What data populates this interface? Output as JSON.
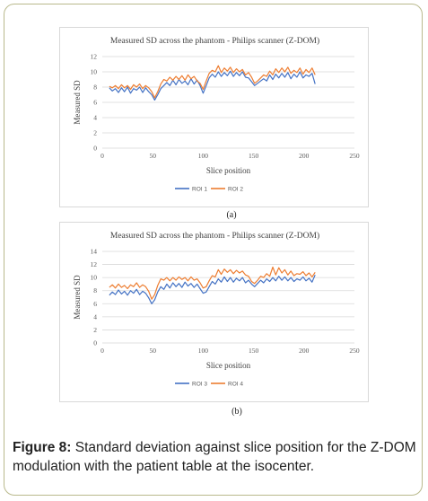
{
  "caption": {
    "label": "Figure 8:",
    "text": " Standard deviation against slice position for the Z-DOM modulation with the patient table at the isocenter."
  },
  "chart_data": [
    {
      "type": "line",
      "panel_label": "(a)",
      "title": "Measured SD across the phantom - Philips scanner (Z-DOM)",
      "xlabel": "Slice position",
      "ylabel": "Measured SD",
      "xlim": [
        0,
        250
      ],
      "ylim": [
        0,
        12
      ],
      "xticks": [
        0,
        50,
        100,
        150,
        200,
        250
      ],
      "yticks": [
        0,
        2,
        4,
        6,
        8,
        10,
        12
      ],
      "grid": true,
      "legend_position": "bottom",
      "series": [
        {
          "name": "ROI 1",
          "color": "#4472c4",
          "x": [
            7,
            10,
            13,
            16,
            19,
            22,
            25,
            28,
            31,
            34,
            37,
            40,
            43,
            46,
            49,
            52,
            55,
            58,
            61,
            64,
            67,
            70,
            73,
            76,
            79,
            82,
            85,
            88,
            91,
            94,
            97,
            100,
            103,
            106,
            109,
            112,
            115,
            118,
            121,
            124,
            127,
            130,
            133,
            136,
            139,
            142,
            145,
            148,
            151,
            154,
            157,
            160,
            163,
            166,
            169,
            172,
            175,
            178,
            181,
            184,
            187,
            190,
            193,
            196,
            199,
            202,
            205,
            208,
            211
          ],
          "values": [
            7.9,
            7.5,
            7.8,
            7.3,
            7.9,
            7.4,
            8.0,
            7.2,
            7.8,
            7.6,
            8.0,
            7.3,
            7.9,
            7.4,
            7.0,
            6.3,
            7.0,
            7.8,
            8.2,
            8.6,
            8.2,
            8.9,
            8.3,
            9.0,
            8.5,
            8.8,
            8.3,
            9.1,
            8.4,
            8.9,
            8.2,
            7.2,
            8.2,
            9.2,
            9.7,
            9.3,
            10.0,
            9.4,
            9.9,
            9.5,
            10.1,
            9.4,
            9.9,
            9.5,
            10.0,
            9.3,
            9.2,
            8.7,
            8.2,
            8.5,
            8.8,
            9.1,
            8.8,
            9.6,
            9.0,
            9.7,
            9.2,
            9.8,
            9.3,
            9.9,
            9.1,
            9.7,
            9.3,
            10.0,
            9.2,
            9.6,
            9.4,
            9.8,
            8.4
          ]
        },
        {
          "name": "ROI 2",
          "color": "#ed7d31",
          "x": [
            7,
            10,
            13,
            16,
            19,
            22,
            25,
            28,
            31,
            34,
            37,
            40,
            43,
            46,
            49,
            52,
            55,
            58,
            61,
            64,
            67,
            70,
            73,
            76,
            79,
            82,
            85,
            88,
            91,
            94,
            97,
            100,
            103,
            106,
            109,
            112,
            115,
            118,
            121,
            124,
            127,
            130,
            133,
            136,
            139,
            142,
            145,
            148,
            151,
            154,
            157,
            160,
            163,
            166,
            169,
            172,
            175,
            178,
            181,
            184,
            187,
            190,
            193,
            196,
            199,
            202,
            205,
            208,
            211
          ],
          "values": [
            8.1,
            7.9,
            8.2,
            7.8,
            8.3,
            7.9,
            8.2,
            7.7,
            8.3,
            8.0,
            8.4,
            7.8,
            8.2,
            7.9,
            7.4,
            6.6,
            7.4,
            8.4,
            9.0,
            8.8,
            9.3,
            8.9,
            9.4,
            9.0,
            9.5,
            8.9,
            9.6,
            9.1,
            9.4,
            8.8,
            8.5,
            7.7,
            8.8,
            9.8,
            10.2,
            10.0,
            10.8,
            9.9,
            10.5,
            10.1,
            10.6,
            9.9,
            10.4,
            10.0,
            10.3,
            9.6,
            9.9,
            9.3,
            8.5,
            8.8,
            9.2,
            9.6,
            9.4,
            10.1,
            9.6,
            10.4,
            9.9,
            10.5,
            10.0,
            10.6,
            9.8,
            10.2,
            9.9,
            10.5,
            9.7,
            10.3,
            9.9,
            10.5,
            9.6
          ]
        }
      ]
    },
    {
      "type": "line",
      "panel_label": "(b)",
      "title": "Measured SD across the phantom - Philips scanner (Z-DOM)",
      "xlabel": "Slice position",
      "ylabel": "Measured SD",
      "xlim": [
        0,
        250
      ],
      "ylim": [
        0,
        14
      ],
      "xticks": [
        0,
        50,
        100,
        150,
        200,
        250
      ],
      "yticks": [
        0,
        2,
        4,
        6,
        8,
        10,
        12,
        14
      ],
      "grid": true,
      "legend_position": "bottom",
      "series": [
        {
          "name": "ROI 3",
          "color": "#4472c4",
          "x": [
            7,
            10,
            13,
            16,
            19,
            22,
            25,
            28,
            31,
            34,
            37,
            40,
            43,
            46,
            49,
            52,
            55,
            58,
            61,
            64,
            67,
            70,
            73,
            76,
            79,
            82,
            85,
            88,
            91,
            94,
            97,
            100,
            103,
            106,
            109,
            112,
            115,
            118,
            121,
            124,
            127,
            130,
            133,
            136,
            139,
            142,
            145,
            148,
            151,
            154,
            157,
            160,
            163,
            166,
            169,
            172,
            175,
            178,
            181,
            184,
            187,
            190,
            193,
            196,
            199,
            202,
            205,
            208,
            211
          ],
          "values": [
            7.3,
            7.8,
            7.4,
            8.1,
            7.5,
            7.9,
            7.3,
            8.0,
            7.6,
            8.2,
            7.4,
            7.9,
            7.6,
            6.9,
            6.0,
            6.6,
            7.8,
            8.6,
            8.2,
            9.0,
            8.4,
            9.2,
            8.6,
            9.1,
            8.5,
            9.3,
            8.7,
            9.1,
            8.5,
            9.0,
            8.3,
            7.6,
            7.8,
            8.6,
            9.4,
            9.0,
            9.8,
            9.3,
            10.1,
            9.4,
            10.0,
            9.3,
            9.9,
            9.5,
            10.0,
            9.2,
            9.6,
            9.0,
            8.6,
            9.1,
            9.6,
            9.2,
            9.8,
            9.4,
            10.0,
            9.5,
            10.2,
            9.6,
            10.1,
            9.5,
            10.0,
            9.4,
            9.8,
            9.6,
            10.1,
            9.5,
            9.9,
            9.3,
            10.4
          ]
        },
        {
          "name": "ROI 4",
          "color": "#ed7d31",
          "x": [
            7,
            10,
            13,
            16,
            19,
            22,
            25,
            28,
            31,
            34,
            37,
            40,
            43,
            46,
            49,
            52,
            55,
            58,
            61,
            64,
            67,
            70,
            73,
            76,
            79,
            82,
            85,
            88,
            91,
            94,
            97,
            100,
            103,
            106,
            109,
            112,
            115,
            118,
            121,
            124,
            127,
            130,
            133,
            136,
            139,
            142,
            145,
            148,
            151,
            154,
            157,
            160,
            163,
            166,
            169,
            172,
            175,
            178,
            181,
            184,
            187,
            190,
            193,
            196,
            199,
            202,
            205,
            208,
            211
          ],
          "values": [
            8.5,
            8.9,
            8.4,
            9.0,
            8.5,
            8.8,
            8.3,
            8.9,
            8.6,
            9.2,
            8.5,
            8.9,
            8.6,
            7.9,
            6.7,
            7.4,
            8.8,
            9.8,
            9.6,
            10.0,
            9.5,
            10.0,
            9.6,
            10.1,
            9.7,
            10.0,
            9.5,
            10.1,
            9.6,
            9.8,
            9.2,
            8.4,
            8.6,
            9.5,
            10.3,
            10.1,
            11.2,
            10.5,
            11.3,
            10.8,
            11.2,
            10.6,
            11.1,
            10.7,
            11.0,
            10.4,
            10.2,
            9.4,
            9.1,
            9.6,
            10.2,
            10.0,
            10.6,
            10.2,
            11.6,
            10.4,
            11.5,
            10.7,
            11.2,
            10.4,
            11.0,
            10.3,
            10.6,
            10.5,
            10.9,
            10.3,
            10.7,
            10.1,
            10.8
          ]
        }
      ]
    }
  ]
}
